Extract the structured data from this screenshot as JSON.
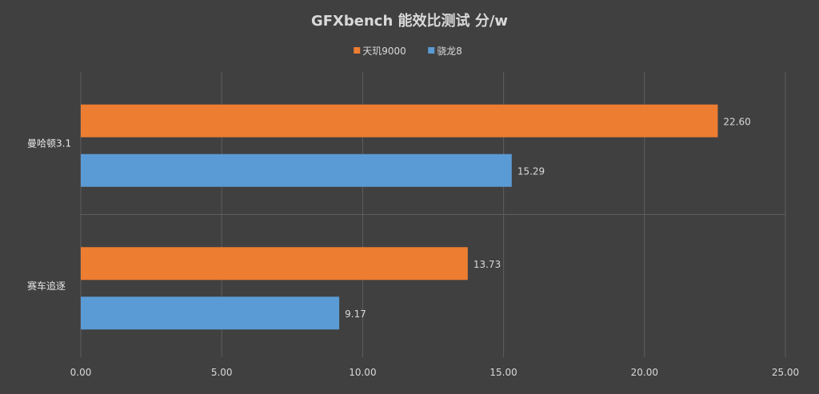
{
  "chart_data": {
    "type": "bar",
    "orientation": "horizontal",
    "title": "GFXbench 能效比测试 分/w",
    "categories": [
      "曼哈顿3.1",
      "赛车追逐"
    ],
    "series": [
      {
        "name": "天玑9000",
        "values": [
          22.6,
          13.73
        ],
        "color": "#ed7d31"
      },
      {
        "name": "骁龙8",
        "values": [
          15.29,
          9.17
        ],
        "color": "#5b9bd5"
      }
    ],
    "data_labels": [
      [
        "22.60",
        "13.73"
      ],
      [
        "15.29",
        "9.17"
      ]
    ],
    "xlim": [
      0,
      25
    ],
    "x_ticks": [
      "0.00",
      "5.00",
      "10.00",
      "15.00",
      "20.00",
      "25.00"
    ],
    "grid": true,
    "legend_position": "top-center"
  }
}
